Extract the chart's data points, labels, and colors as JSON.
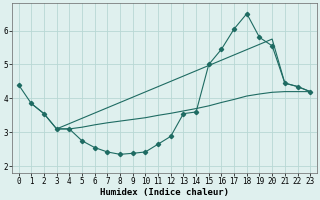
{
  "line1_x": [
    0,
    1,
    2,
    3,
    4,
    5,
    6,
    7,
    8,
    9,
    10,
    11,
    12,
    13,
    14,
    15,
    16,
    17,
    18,
    19,
    20,
    21,
    22,
    23
  ],
  "line1_y": [
    4.4,
    3.85,
    3.55,
    3.1,
    3.1,
    2.75,
    2.55,
    2.42,
    2.35,
    2.38,
    2.42,
    2.65,
    2.88,
    3.55,
    3.6,
    5.0,
    5.45,
    6.05,
    6.5,
    5.8,
    5.55,
    4.45,
    4.35,
    4.2
  ],
  "line2_x": [
    3,
    20,
    21,
    22,
    23
  ],
  "line2_y": [
    3.1,
    5.75,
    4.45,
    4.35,
    4.2
  ],
  "line3_x": [
    1,
    2,
    3,
    4,
    5,
    6,
    7,
    8,
    9,
    10,
    11,
    12,
    13,
    14,
    15,
    16,
    17,
    18,
    19,
    20,
    21,
    22,
    23
  ],
  "line3_y": [
    3.85,
    3.55,
    3.1,
    3.1,
    3.15,
    3.22,
    3.28,
    3.33,
    3.38,
    3.43,
    3.5,
    3.56,
    3.63,
    3.7,
    3.78,
    3.88,
    3.97,
    4.07,
    4.13,
    4.18,
    4.2,
    4.2,
    4.2
  ],
  "bg_color": "#dff0ee",
  "grid_color": "#b8d8d4",
  "line_color": "#1e6b62",
  "xlabel": "Humidex (Indice chaleur)",
  "xlim": [
    -0.5,
    23.5
  ],
  "ylim": [
    1.8,
    6.8
  ],
  "xticks": [
    0,
    1,
    2,
    3,
    4,
    5,
    6,
    7,
    8,
    9,
    10,
    11,
    12,
    13,
    14,
    15,
    16,
    17,
    18,
    19,
    20,
    21,
    22,
    23
  ],
  "yticks": [
    2,
    3,
    4,
    5,
    6
  ],
  "xlabel_fontsize": 6.5,
  "tick_fontsize": 5.5
}
